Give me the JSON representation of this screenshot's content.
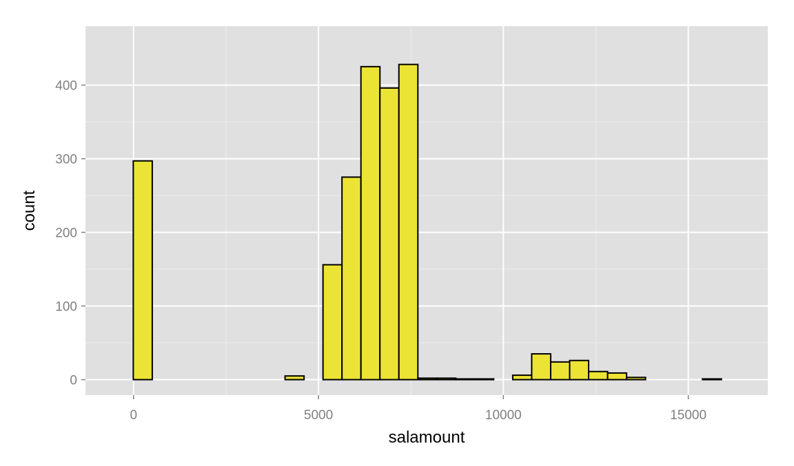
{
  "chart_data": {
    "type": "bar",
    "title": "",
    "xlabel": "salamount",
    "ylabel": "count",
    "xlim": [
      -1300,
      17150
    ],
    "ylim": [
      -21,
      480
    ],
    "xticks": [
      0,
      5000,
      10000,
      15000
    ],
    "xtick_labels": [
      "0",
      "5000",
      "10000",
      "15000"
    ],
    "yticks": [
      0,
      100,
      200,
      300,
      400
    ],
    "ytick_labels": [
      "0",
      "100",
      "200",
      "300",
      "400"
    ],
    "bin_width": 513,
    "bin_start": -520,
    "bins": [
      {
        "x_start": -520,
        "x_end": -7,
        "count": 0
      },
      {
        "x_start": -7,
        "x_end": 506,
        "count": 297
      },
      {
        "x_start": 506,
        "x_end": 1019,
        "count": 0
      },
      {
        "x_start": 1019,
        "x_end": 1532,
        "count": 0
      },
      {
        "x_start": 1532,
        "x_end": 2045,
        "count": 0
      },
      {
        "x_start": 2045,
        "x_end": 2558,
        "count": 0
      },
      {
        "x_start": 2558,
        "x_end": 3071,
        "count": 0
      },
      {
        "x_start": 3071,
        "x_end": 3584,
        "count": 0
      },
      {
        "x_start": 3584,
        "x_end": 4097,
        "count": 0
      },
      {
        "x_start": 4097,
        "x_end": 4610,
        "count": 5
      },
      {
        "x_start": 4610,
        "x_end": 5123,
        "count": 0
      },
      {
        "x_start": 5123,
        "x_end": 5636,
        "count": 156
      },
      {
        "x_start": 5636,
        "x_end": 6149,
        "count": 275
      },
      {
        "x_start": 6149,
        "x_end": 6662,
        "count": 425
      },
      {
        "x_start": 6662,
        "x_end": 7175,
        "count": 396
      },
      {
        "x_start": 7175,
        "x_end": 7688,
        "count": 428
      },
      {
        "x_start": 7688,
        "x_end": 8201,
        "count": 2
      },
      {
        "x_start": 8201,
        "x_end": 8714,
        "count": 2
      },
      {
        "x_start": 8714,
        "x_end": 9227,
        "count": 1
      },
      {
        "x_start": 9227,
        "x_end": 9740,
        "count": 1
      },
      {
        "x_start": 9740,
        "x_end": 10253,
        "count": 0
      },
      {
        "x_start": 10253,
        "x_end": 10766,
        "count": 6
      },
      {
        "x_start": 10766,
        "x_end": 11279,
        "count": 35
      },
      {
        "x_start": 11279,
        "x_end": 11792,
        "count": 24
      },
      {
        "x_start": 11792,
        "x_end": 12305,
        "count": 26
      },
      {
        "x_start": 12305,
        "x_end": 12818,
        "count": 11
      },
      {
        "x_start": 12818,
        "x_end": 13331,
        "count": 9
      },
      {
        "x_start": 13331,
        "x_end": 13844,
        "count": 3
      },
      {
        "x_start": 13844,
        "x_end": 14357,
        "count": 0
      },
      {
        "x_start": 14357,
        "x_end": 14870,
        "count": 0
      },
      {
        "x_start": 14870,
        "x_end": 15383,
        "count": 0
      },
      {
        "x_start": 15383,
        "x_end": 15896,
        "count": 1
      },
      {
        "x_start": 15896,
        "x_end": 16409,
        "count": 0
      }
    ],
    "grid": true,
    "legend": "none",
    "colors": {
      "fill": "#ece434",
      "stroke": "#000000",
      "panel_background": "#e0e0e0",
      "grid_major": "#ffffff",
      "grid_minor": "#ececec",
      "tick_text": "#7f7f7f",
      "axis_title": "#000000"
    }
  }
}
